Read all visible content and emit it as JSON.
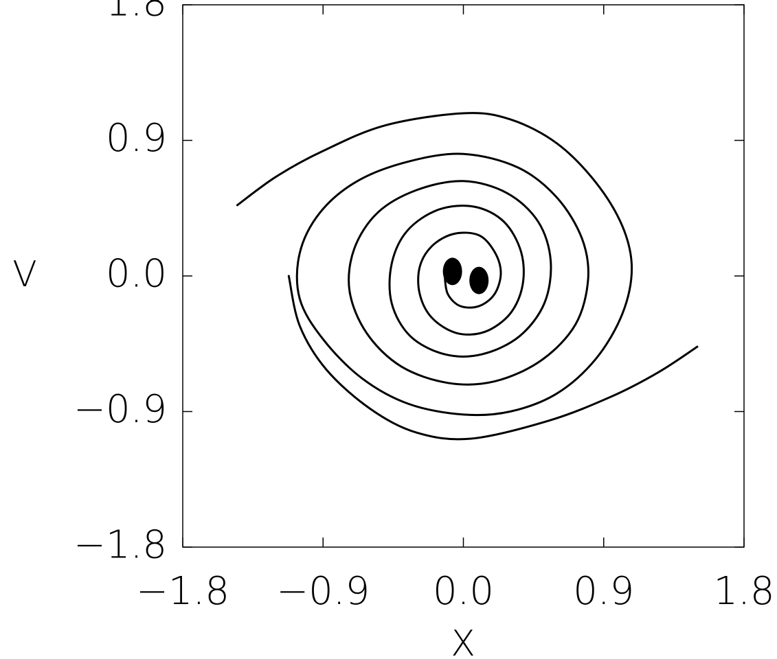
{
  "chart_data": {
    "type": "line",
    "title": "",
    "xlabel": "X",
    "ylabel": "V",
    "xlim": [
      -1.8,
      1.8
    ],
    "ylim": [
      -1.8,
      1.8
    ],
    "x_ticks": [
      -1.8,
      -0.9,
      0.0,
      0.9,
      1.8
    ],
    "y_ticks": [
      -1.8,
      -0.9,
      0.0,
      0.9,
      1.8
    ],
    "x_tick_labels": [
      "−1.8",
      "−0.9",
      "0.0",
      "0.9",
      "1.8"
    ],
    "y_tick_labels": [
      "−1.8",
      "−0.9",
      "0.0",
      "0.9",
      "1.8"
    ],
    "grid": false,
    "series": [
      {
        "style": "solid-black-curve",
        "points": [
          [
            -1.45,
            0.47
          ],
          [
            -1.2,
            0.66
          ],
          [
            -0.9,
            0.83
          ],
          [
            -0.5,
            1.0
          ],
          [
            0.0,
            1.08
          ],
          [
            0.3,
            1.04
          ],
          [
            0.6,
            0.88
          ],
          [
            0.85,
            0.62
          ],
          [
            1.02,
            0.33
          ],
          [
            1.08,
            0.05
          ],
          [
            1.02,
            -0.25
          ],
          [
            0.85,
            -0.55
          ],
          [
            0.6,
            -0.78
          ],
          [
            0.3,
            -0.9
          ],
          [
            0.0,
            -0.92
          ],
          [
            -0.35,
            -0.85
          ],
          [
            -0.65,
            -0.68
          ],
          [
            -0.9,
            -0.42
          ],
          [
            -1.05,
            -0.15
          ],
          [
            -1.05,
            0.15
          ],
          [
            -0.92,
            0.42
          ],
          [
            -0.68,
            0.63
          ],
          [
            -0.35,
            0.76
          ],
          [
            0.0,
            0.81
          ],
          [
            0.35,
            0.72
          ],
          [
            0.6,
            0.52
          ],
          [
            0.76,
            0.25
          ],
          [
            0.8,
            -0.02
          ],
          [
            0.72,
            -0.32
          ],
          [
            0.5,
            -0.56
          ],
          [
            0.2,
            -0.7
          ],
          [
            -0.1,
            -0.71
          ],
          [
            -0.4,
            -0.6
          ],
          [
            -0.62,
            -0.38
          ],
          [
            -0.73,
            -0.1
          ],
          [
            -0.7,
            0.18
          ],
          [
            -0.55,
            0.42
          ],
          [
            -0.3,
            0.57
          ],
          [
            0.0,
            0.63
          ],
          [
            0.28,
            0.55
          ],
          [
            0.48,
            0.36
          ],
          [
            0.56,
            0.1
          ],
          [
            0.52,
            -0.18
          ],
          [
            0.36,
            -0.4
          ],
          [
            0.12,
            -0.52
          ],
          [
            -0.12,
            -0.52
          ],
          [
            -0.34,
            -0.4
          ],
          [
            -0.46,
            -0.18
          ],
          [
            -0.46,
            0.08
          ],
          [
            -0.36,
            0.3
          ],
          [
            -0.16,
            0.44
          ],
          [
            0.07,
            0.46
          ],
          [
            0.26,
            0.36
          ],
          [
            0.37,
            0.16
          ],
          [
            0.38,
            -0.06
          ],
          [
            0.3,
            -0.25
          ],
          [
            0.14,
            -0.37
          ],
          [
            -0.04,
            -0.38
          ],
          [
            -0.2,
            -0.28
          ],
          [
            -0.28,
            -0.12
          ],
          [
            -0.28,
            0.06
          ],
          [
            -0.2,
            0.2
          ],
          [
            -0.06,
            0.28
          ],
          [
            0.1,
            0.27
          ],
          [
            0.2,
            0.16
          ],
          [
            0.24,
            0.02
          ],
          [
            0.2,
            -0.12
          ],
          [
            0.1,
            -0.2
          ],
          [
            -0.02,
            -0.2
          ],
          [
            -0.1,
            -0.12
          ],
          [
            -0.12,
            0.0
          ]
        ]
      },
      {
        "style": "solid-black-curve",
        "points": [
          [
            1.5,
            -0.47
          ],
          [
            1.25,
            -0.64
          ],
          [
            0.95,
            -0.8
          ],
          [
            0.55,
            -0.96
          ],
          [
            0.05,
            -1.08
          ],
          [
            -0.3,
            -1.04
          ],
          [
            -0.6,
            -0.88
          ],
          [
            -0.88,
            -0.62
          ],
          [
            -1.05,
            -0.33
          ],
          [
            -1.12,
            0.0
          ]
        ]
      }
    ],
    "markers": [
      {
        "x": -0.07,
        "y": 0.03,
        "shape": "filled-blob"
      },
      {
        "x": 0.1,
        "y": -0.03,
        "shape": "filled-blob"
      }
    ]
  }
}
